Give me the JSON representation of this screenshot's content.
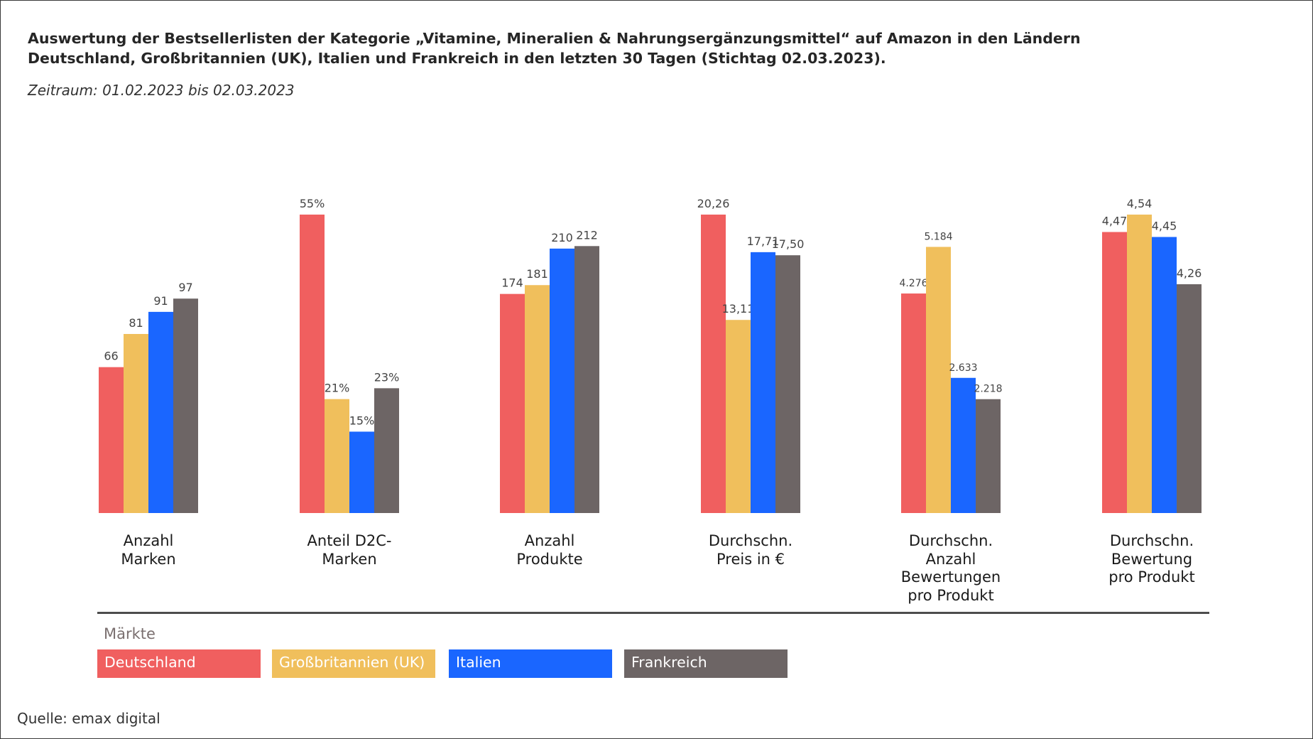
{
  "title_lines": [
    "Auswertung der Bestsellerlisten  der Kategorie „Vitamine, Mineralien & Nahrungsergänzungsmittel“ auf Amazon in den Ländern",
    "Deutschland, Großbritannien (UK), Italien und Frankreich in den letzten 30 Tagen (Stichtag 02.03.2023)."
  ],
  "subtitle": "Zeitraum:  01.02.2023 bis  02.03.2023",
  "legend_title": "Märkte",
  "source": "Quelle: emax digital",
  "colors": {
    "Deutschland": "#f05f5f",
    "Großbritannien (UK)": "#f0bf5c",
    "Italien": "#1a66ff",
    "Frankreich": "#6d6565"
  },
  "chart_data": {
    "type": "bar",
    "title": "Auswertung der Bestsellerlisten  der Kategorie „Vitamine, Mineralien & Nahrungsergänzungsmittel“ auf Amazon in den Ländern Deutschland, Großbritannien (UK), Italien und Frankreich in den letzten 30 Tagen (Stichtag 02.03.2023).",
    "subtitle": "Zeitraum:  01.02.2023 bis  02.03.2023",
    "legend_title": "Märkte",
    "legend_position": "bottom-left",
    "grid": false,
    "yaxis_visible": false,
    "categories": [
      [
        "Anzahl",
        "Marken"
      ],
      [
        "Anteil D2C-",
        "Marken"
      ],
      [
        "Anzahl",
        "Produkte"
      ],
      [
        "Durchschn.",
        "Preis in €"
      ],
      [
        "Durchschn.",
        "Anzahl",
        "Bewertungen",
        "pro Produkt"
      ],
      [
        "Durchschn.",
        "Bewertung",
        "pro Produkt"
      ]
    ],
    "series": [
      {
        "name": "Deutschland",
        "color": "#f05f5f",
        "values": [
          66,
          55,
          174,
          20.26,
          4276,
          4.47
        ],
        "labels": [
          "66",
          "55%",
          "174",
          "20,26",
          "4.276",
          "4,47"
        ]
      },
      {
        "name": "Großbritannien (UK)",
        "color": "#f0bf5c",
        "values": [
          81,
          21,
          181,
          13.11,
          5184,
          4.54
        ],
        "labels": [
          "81",
          "21%",
          "181",
          "13,11",
          "5.184",
          "4,54"
        ]
      },
      {
        "name": "Italien",
        "color": "#1a66ff",
        "values": [
          91,
          15,
          210,
          17.71,
          2633,
          4.45
        ],
        "labels": [
          "91",
          "15%",
          "210",
          "17,71",
          "2.633",
          "4,45"
        ]
      },
      {
        "name": "Frankreich",
        "color": "#6d6565",
        "values": [
          97,
          23,
          212,
          17.5,
          2218,
          4.26
        ],
        "labels": [
          "97",
          "23%",
          "212",
          "17,50",
          "2.218",
          "4,26"
        ]
      }
    ],
    "group_ylim": [
      [
        0,
        135
      ],
      [
        0,
        55
      ],
      [
        0,
        237
      ],
      [
        0,
        20.26
      ],
      [
        0,
        5813
      ],
      [
        0,
        4.54
      ]
    ],
    "group_ybase": [
      0,
      0,
      0,
      0,
      0,
      3.34
    ]
  }
}
